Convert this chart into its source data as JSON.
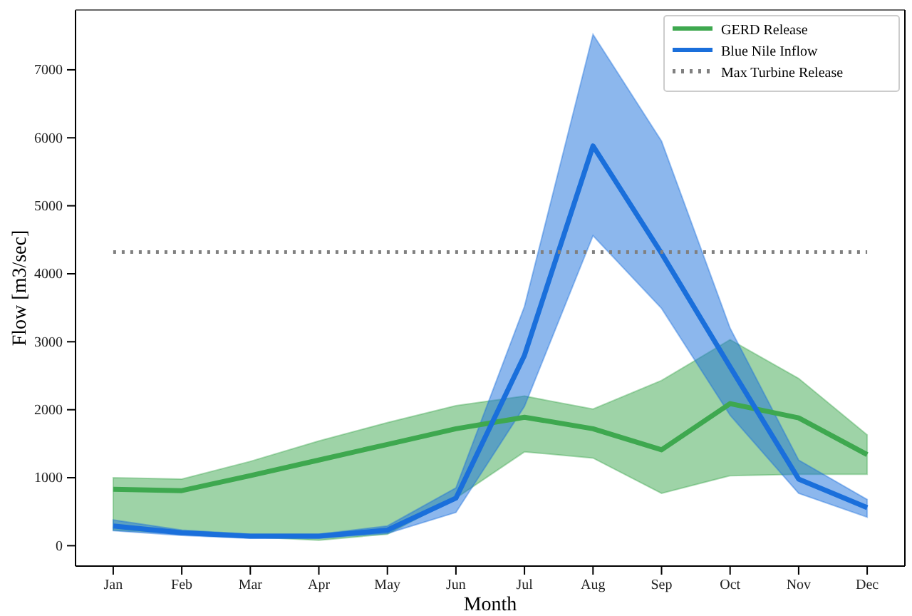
{
  "chart_data": {
    "type": "line",
    "xlabel": "Month",
    "ylabel": "Flow [m3/sec]",
    "categories": [
      "Jan",
      "Feb",
      "Mar",
      "Apr",
      "May",
      "Jun",
      "Jul",
      "Aug",
      "Sep",
      "Oct",
      "Nov",
      "Dec"
    ],
    "series": [
      {
        "name": "GERD Release",
        "color": "#3ea84f",
        "values": [
          830,
          810,
          1030,
          1260,
          1490,
          1720,
          1890,
          1720,
          1410,
          2090,
          1880,
          1340
        ],
        "lower": [
          230,
          180,
          130,
          80,
          170,
          700,
          1380,
          1290,
          770,
          1030,
          1050,
          1050
        ],
        "upper": [
          1000,
          980,
          1240,
          1540,
          1810,
          2060,
          2200,
          2010,
          2430,
          3030,
          2460,
          1630
        ]
      },
      {
        "name": "Blue Nile Inflow",
        "color": "#1a6fdb",
        "values": [
          290,
          190,
          140,
          140,
          230,
          700,
          2800,
          5880,
          4300,
          2630,
          980,
          560
        ],
        "lower": [
          220,
          150,
          110,
          110,
          180,
          490,
          2050,
          4560,
          3490,
          1920,
          770,
          420
        ],
        "upper": [
          380,
          230,
          170,
          170,
          290,
          850,
          3520,
          7520,
          5950,
          3200,
          1260,
          680
        ]
      }
    ],
    "ref_lines": [
      {
        "axis": "y",
        "value": 4320,
        "label": "Max Turbine Release",
        "color": "#808080",
        "line_style": "dotted"
      }
    ],
    "ylim": [
      -300,
      7880
    ],
    "yticks": [
      0,
      1000,
      2000,
      3000,
      4000,
      5000,
      6000,
      7000
    ],
    "grid": false,
    "legend": "top right",
    "marker": "none",
    "line_style": "solid"
  }
}
